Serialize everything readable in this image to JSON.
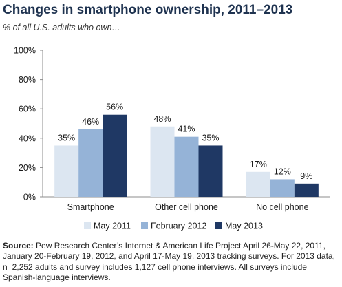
{
  "header": {
    "title": "Changes in smartphone ownership, 2011–2013",
    "subtitle": "% of all U.S. adults who own…"
  },
  "chart_data": {
    "type": "bar",
    "title": "Changes in smartphone ownership, 2011–2013",
    "subtitle": "% of all U.S. adults who own…",
    "categories": [
      "Smartphone",
      "Other cell phone",
      "No cell phone"
    ],
    "series": [
      {
        "name": "May 2011",
        "values": [
          35,
          48,
          17
        ],
        "labels": [
          "35%",
          "48%",
          "17%"
        ],
        "color": "#dce6f1"
      },
      {
        "name": "February 2012",
        "values": [
          46,
          41,
          12
        ],
        "labels": [
          "46%",
          "41%",
          "12%"
        ],
        "color": "#95b3d7"
      },
      {
        "name": "May 2013",
        "values": [
          56,
          35,
          9
        ],
        "labels": [
          "56%",
          "35%",
          "9%"
        ],
        "color": "#1f3864"
      }
    ],
    "yticks": [
      "0%",
      "20%",
      "40%",
      "60%",
      "80%",
      "100%"
    ],
    "ylim": [
      0,
      100
    ],
    "legend_position": "bottom",
    "grid": false
  },
  "footer": {
    "source_label": "Source:",
    "source_text": " Pew Research Center’s Internet & American Life Project April 26-May 22, 2011, January 20-February 19, 2012, and April 17-May 19, 2013 tracking surveys. For 2013 data, n=2,252 adults and survey includes 1,127 cell phone interviews. All surveys include Spanish-language interviews."
  }
}
